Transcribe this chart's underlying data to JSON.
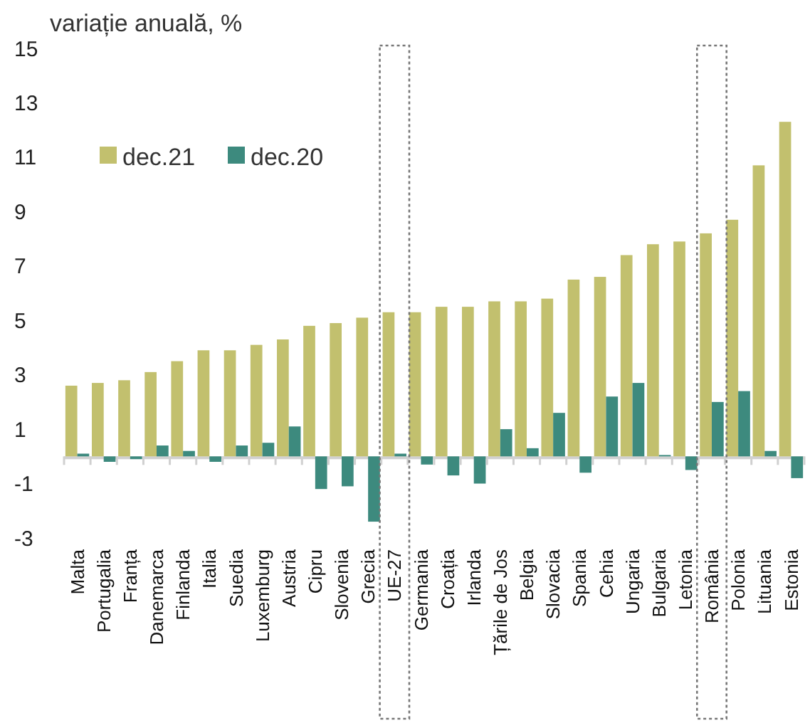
{
  "chart_data": {
    "type": "bar",
    "ylabel": "variație anuală, %",
    "categories": [
      "Malta",
      "Portugalia",
      "Franța",
      "Danemarca",
      "Finlanda",
      "Italia",
      "Suedia",
      "Luxemburg",
      "Austria",
      "Cipru",
      "Slovenia",
      "Grecia",
      "UE-27",
      "Germania",
      "Croația",
      "Irlanda",
      "Țările de Jos",
      "Belgia",
      "Slovacia",
      "Spania",
      "Cehia",
      "Ungaria",
      "Bulgaria",
      "Letonia",
      "România",
      "Polonia",
      "Lituania",
      "Estonia"
    ],
    "series": [
      {
        "name": "dec.21",
        "color": "#c2c06e",
        "values": [
          2.6,
          2.7,
          2.8,
          3.1,
          3.5,
          3.9,
          3.9,
          4.1,
          4.3,
          4.8,
          4.9,
          5.1,
          5.3,
          5.3,
          5.5,
          5.5,
          5.7,
          5.7,
          5.8,
          6.5,
          6.6,
          7.4,
          7.8,
          7.9,
          8.2,
          8.7,
          10.7,
          12.3
        ]
      },
      {
        "name": "dec.20",
        "color": "#3d8a7e",
        "values": [
          0.1,
          -0.2,
          -0.1,
          0.4,
          0.2,
          -0.2,
          0.4,
          0.5,
          1.1,
          -1.2,
          -1.1,
          -2.4,
          0.1,
          -0.3,
          -0.7,
          -1.0,
          1.0,
          0.3,
          1.6,
          -0.6,
          2.2,
          2.7,
          0.05,
          -0.5,
          2.0,
          2.4,
          0.2,
          -0.8
        ]
      }
    ],
    "ylim": [
      -3,
      15
    ],
    "yticks": [
      -3,
      -1,
      1,
      3,
      5,
      7,
      9,
      11,
      13,
      15
    ],
    "grid": false,
    "legend": "top left"
  }
}
